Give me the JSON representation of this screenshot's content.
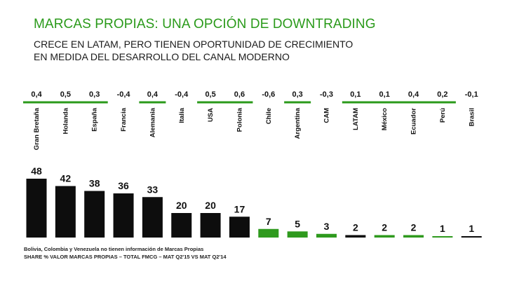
{
  "header": {
    "title": "MARCAS PROPIAS: UNA OPCIÓN DE DOWNTRADING",
    "subtitle_line1": "CRECE EN LATAM, PERO TIENEN OPORTUNIDAD DE CRECIMIENTO",
    "subtitle_line2": "EN MEDIDA DEL DESARROLLO DEL CANAL MODERNO"
  },
  "footnotes": {
    "line1": "Bolivia, Colombia y Venezuela no tienen información de Marcas Propias",
    "line2": "SHARE % VALOR MARCAS PROPIAS – TOTAL FMCG – MAT Q2'15 VS MAT Q2'14"
  },
  "colors": {
    "title": "#2a9a1a",
    "bar_dark": "#0d0d0d",
    "bar_green": "#2f9a1e",
    "group_line": "#2a9a1a"
  },
  "chart_data": {
    "type": "bar",
    "categories": [
      "Gran Bretaña",
      "Holanda",
      "España",
      "Francia",
      "Alemania",
      "Italia",
      "USA",
      "Polonia",
      "Chile",
      "Argentina",
      "CAM",
      "LATAM",
      "México",
      "Ecuador",
      "Perú",
      "Brasil"
    ],
    "values": [
      48,
      42,
      38,
      36,
      33,
      20,
      20,
      17,
      7,
      5,
      3,
      2,
      2,
      2,
      1,
      1
    ],
    "value_labels": [
      "48",
      "42",
      "38",
      "36",
      "33",
      "20",
      "20",
      "17",
      "7",
      "5",
      "3",
      "2",
      "2",
      "2",
      "1",
      "1"
    ],
    "change_labels": [
      "0,4",
      "0,5",
      "0,3",
      "-0,4",
      "0,4",
      "-0,4",
      "0,5",
      "0,6",
      "-0,6",
      "0,3",
      "-0,3",
      "0,1",
      "0,1",
      "0,4",
      "0,2",
      "-0,1"
    ],
    "bar_colors": [
      "dark",
      "dark",
      "dark",
      "dark",
      "dark",
      "dark",
      "dark",
      "dark",
      "green",
      "green",
      "green",
      "dark",
      "green",
      "green",
      "green",
      "dark"
    ],
    "groups": [
      [
        0,
        2
      ],
      [
        4,
        4
      ],
      [
        6,
        7
      ],
      [
        9,
        9
      ],
      [
        11,
        14
      ]
    ],
    "ylim": [
      0,
      50
    ],
    "grid": false,
    "legend": "none"
  }
}
